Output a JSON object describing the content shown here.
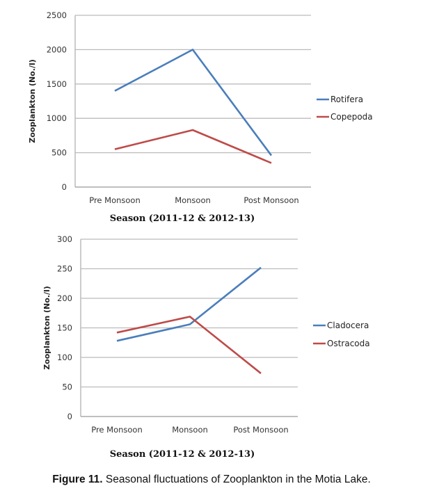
{
  "chart_data": [
    {
      "type": "line",
      "title": "",
      "xlabel": "Season (2011-12 & 2012-13)",
      "ylabel": "Zooplankton (No./l)",
      "categories": [
        "Pre Monsoon",
        "Monsoon",
        "Post Monsoon"
      ],
      "ylim": [
        0,
        2500
      ],
      "yticks": [
        0,
        500,
        1000,
        1500,
        2000,
        2500
      ],
      "grid": true,
      "legend": "right",
      "series": [
        {
          "name": "Rotifera",
          "color": "#4a7ebb",
          "values": [
            1400,
            2000,
            460
          ]
        },
        {
          "name": "Copepoda",
          "color": "#be4b48",
          "values": [
            550,
            830,
            350
          ]
        }
      ]
    },
    {
      "type": "line",
      "title": "",
      "xlabel": "Season (2011-12 & 2012-13)",
      "ylabel": "Zooplankton (No./l)",
      "categories": [
        "Pre Monsoon",
        "Monsoon",
        "Post Monsoon"
      ],
      "ylim": [
        0,
        300
      ],
      "yticks": [
        0,
        50,
        100,
        150,
        200,
        250,
        300
      ],
      "grid": true,
      "legend": "right",
      "series": [
        {
          "name": "Cladocera",
          "color": "#4a7ebb",
          "values": [
            128,
            156,
            252
          ]
        },
        {
          "name": "Ostracoda",
          "color": "#be4b48",
          "values": [
            142,
            169,
            73
          ]
        }
      ]
    }
  ],
  "caption": {
    "label": "Figure 11.",
    "text": " Seasonal fluctuations of Zooplankton in the Motia Lake."
  }
}
